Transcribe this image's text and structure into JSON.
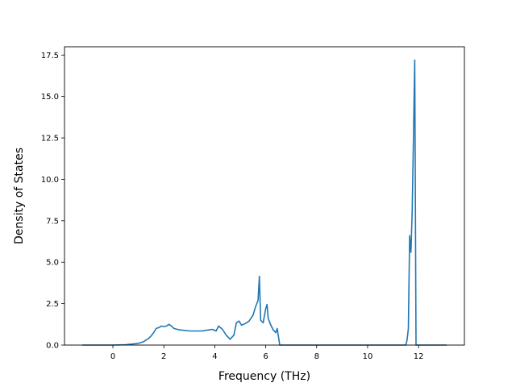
{
  "chart_data": {
    "type": "line",
    "title": "",
    "xlabel": "Frequency (THz)",
    "ylabel": "Density of States",
    "xlim": [
      -1.9,
      13.8
    ],
    "ylim": [
      0,
      18.0
    ],
    "xticks": [
      0,
      2,
      4,
      6,
      8,
      10,
      12
    ],
    "yticks": [
      0.0,
      2.5,
      5.0,
      7.5,
      10.0,
      12.5,
      15.0,
      17.5
    ],
    "xtick_labels": [
      "0",
      "2",
      "4",
      "6",
      "8",
      "10",
      "12"
    ],
    "ytick_labels": [
      "0.0",
      "2.5",
      "5.0",
      "7.5",
      "10.0",
      "12.5",
      "15.0",
      "17.5"
    ],
    "grid": false,
    "legend": "none",
    "series": [
      {
        "color": "#1f77b4",
        "x": [
          -1.2,
          -0.5,
          0.0,
          0.5,
          1.0,
          1.2,
          1.4,
          1.5,
          1.6,
          1.7,
          1.8,
          1.9,
          2.0,
          2.1,
          2.2,
          2.3,
          2.4,
          2.6,
          3.0,
          3.5,
          3.9,
          4.05,
          4.15,
          4.3,
          4.45,
          4.6,
          4.75,
          4.85,
          4.95,
          5.05,
          5.2,
          5.35,
          5.5,
          5.6,
          5.7,
          5.75,
          5.8,
          5.9,
          6.0,
          6.05,
          6.1,
          6.2,
          6.3,
          6.4,
          6.45,
          6.5,
          6.55,
          6.6,
          8.0,
          10.0,
          11.5,
          11.55,
          11.6,
          11.65,
          11.7,
          11.75,
          11.8,
          11.85,
          11.9,
          11.95,
          12.0,
          13.1
        ],
        "y": [
          0.0,
          0.0,
          0.0,
          0.02,
          0.1,
          0.2,
          0.4,
          0.55,
          0.75,
          1.0,
          1.05,
          1.15,
          1.12,
          1.15,
          1.25,
          1.15,
          1.0,
          0.92,
          0.85,
          0.85,
          0.95,
          0.85,
          1.15,
          0.95,
          0.6,
          0.35,
          0.6,
          1.35,
          1.45,
          1.2,
          1.3,
          1.45,
          1.8,
          2.3,
          2.7,
          4.15,
          1.5,
          1.35,
          2.2,
          2.45,
          1.6,
          1.2,
          0.9,
          0.75,
          1.0,
          0.5,
          0.0,
          0.0,
          0.0,
          0.0,
          0.0,
          0.3,
          1.0,
          6.6,
          5.6,
          8.0,
          12.5,
          17.2,
          0.0,
          0.0,
          0.0,
          0.0
        ]
      }
    ]
  }
}
